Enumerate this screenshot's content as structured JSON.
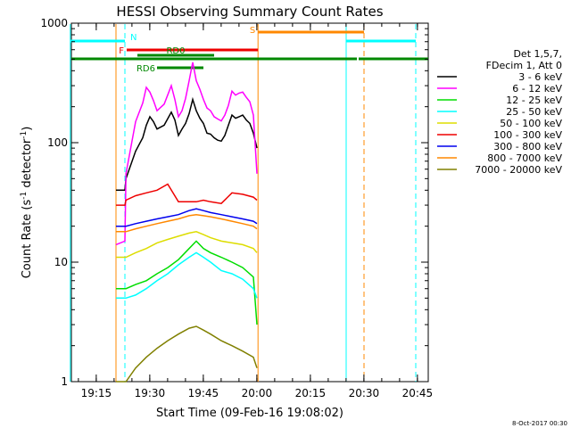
{
  "chart_data": {
    "type": "line",
    "title": "HESSI Observing Summary Count Rates",
    "xlabel": "Start Time (09-Feb-16 19:08:02)",
    "ylabel": "Count Rate (s⁻¹ detector⁻¹)",
    "ylabel_parts": [
      "Count Rate (s",
      "-1",
      " detector",
      "-1",
      ")"
    ],
    "yscale": "log",
    "xlim_minutes": [
      0,
      100
    ],
    "ylim": [
      1,
      1000
    ],
    "y_ticks": [
      {
        "value": 1,
        "label": "1"
      },
      {
        "value": 10,
        "label": "10"
      },
      {
        "value": 100,
        "label": "100"
      },
      {
        "value": 1000,
        "label": "1000"
      }
    ],
    "x_ticks": [
      {
        "minute": 6.97,
        "label": "19:15"
      },
      {
        "minute": 21.97,
        "label": "19:30"
      },
      {
        "minute": 36.97,
        "label": "19:45"
      },
      {
        "minute": 51.97,
        "label": "20:00"
      },
      {
        "minute": 66.97,
        "label": "20:15"
      },
      {
        "minute": 81.97,
        "label": "20:30"
      },
      {
        "minute": 96.97,
        "label": "20:45"
      }
    ],
    "legend": {
      "placement": "right",
      "header": [
        "Det 1,5,7,",
        "FDecim 1, Att 0"
      ],
      "entries": [
        {
          "label": "3 - 6 keV",
          "color": "#000000"
        },
        {
          "label": "6 - 12 keV",
          "color": "#ff00ff"
        },
        {
          "label": "12 - 25 keV",
          "color": "#00dd00"
        },
        {
          "label": "25 - 50 keV",
          "color": "#00ffff"
        },
        {
          "label": "50 - 100 keV",
          "color": "#dddd00"
        },
        {
          "label": "100 - 300 keV",
          "color": "#ee0000"
        },
        {
          "label": "300 - 800 keV",
          "color": "#0000ee"
        },
        {
          "label": "800 - 7000 keV",
          "color": "#ff8800"
        },
        {
          "label": "7000 - 20000 keV",
          "color": "#808000"
        }
      ]
    },
    "series": [
      {
        "name": "3 - 6 keV",
        "color": "#000000",
        "x": [
          12.5,
          15,
          15.3,
          18,
          20,
          21,
          22,
          23,
          24,
          26,
          28,
          29,
          30,
          31,
          32,
          33,
          34,
          35,
          36,
          37,
          38,
          39,
          40,
          41,
          42,
          43,
          44,
          45,
          46,
          47,
          48,
          49,
          50,
          51,
          52
        ],
        "y": [
          40,
          40,
          50,
          85,
          110,
          140,
          165,
          150,
          130,
          140,
          180,
          155,
          115,
          130,
          145,
          175,
          230,
          185,
          160,
          145,
          120,
          118,
          110,
          105,
          103,
          115,
          140,
          170,
          160,
          165,
          170,
          155,
          145,
          120,
          90
        ]
      },
      {
        "name": "6 - 12 keV",
        "color": "#ff00ff",
        "x": [
          12.5,
          15,
          15.3,
          18,
          20,
          21,
          22,
          23,
          24,
          26,
          28,
          29,
          30,
          31,
          32,
          33,
          34,
          35,
          36,
          37,
          38,
          39,
          40,
          41,
          42,
          43,
          44,
          45,
          46,
          47,
          48,
          49,
          50,
          51,
          52
        ],
        "y": [
          14,
          15,
          55,
          150,
          215,
          290,
          265,
          225,
          185,
          210,
          300,
          230,
          165,
          185,
          235,
          330,
          470,
          330,
          280,
          230,
          195,
          185,
          165,
          158,
          152,
          170,
          205,
          270,
          250,
          260,
          265,
          240,
          220,
          170,
          55
        ]
      },
      {
        "name": "12 - 25 keV",
        "color": "#00dd00",
        "x": [
          12.5,
          15,
          15.3,
          18,
          21,
          24,
          27,
          30,
          33,
          35,
          37,
          39,
          42,
          45,
          48,
          51,
          52
        ],
        "y": [
          6,
          6,
          6,
          6.5,
          7,
          8,
          9,
          10.5,
          13,
          15,
          13,
          12,
          11,
          10,
          9,
          7.5,
          3
        ]
      },
      {
        "name": "25 - 50 keV",
        "color": "#00ffff",
        "x": [
          12.5,
          15,
          15.3,
          18,
          21,
          24,
          27,
          30,
          33,
          35,
          37,
          39,
          42,
          45,
          48,
          51,
          52
        ],
        "y": [
          5,
          5,
          5,
          5.3,
          6,
          7,
          8,
          9.5,
          11,
          12,
          11,
          10,
          8.5,
          8,
          7.2,
          6,
          5
        ]
      },
      {
        "name": "50 - 100 keV",
        "color": "#dddd00",
        "x": [
          12.5,
          15,
          15.3,
          18,
          21,
          24,
          27,
          30,
          33,
          35,
          37,
          39,
          42,
          45,
          48,
          51,
          52
        ],
        "y": [
          11,
          11,
          11,
          12,
          13,
          14.5,
          15.5,
          16.5,
          17.5,
          18,
          17,
          16,
          15,
          14.5,
          14,
          13,
          12
        ]
      },
      {
        "name": "100 - 300 keV",
        "color": "#ee0000",
        "x": [
          12.5,
          15,
          15.3,
          18,
          21,
          24,
          27,
          30,
          33,
          35,
          37,
          39,
          42,
          45,
          48,
          51,
          52
        ],
        "y": [
          30,
          30,
          33,
          36,
          38,
          40,
          45,
          32,
          32,
          32,
          33,
          32,
          31,
          38,
          37,
          35,
          33
        ]
      },
      {
        "name": "300 - 800 keV",
        "color": "#0000ee",
        "x": [
          12.5,
          15,
          15.3,
          18,
          21,
          24,
          27,
          30,
          33,
          35,
          37,
          39,
          42,
          45,
          48,
          51,
          52
        ],
        "y": [
          20,
          20,
          20,
          21,
          22,
          23,
          24,
          25,
          27,
          28,
          27,
          26,
          25,
          24,
          23,
          22,
          21
        ]
      },
      {
        "name": "800 - 7000 keV",
        "color": "#ff8800",
        "x": [
          12.5,
          15,
          15.3,
          18,
          21,
          24,
          27,
          30,
          33,
          35,
          37,
          39,
          42,
          45,
          48,
          51,
          52
        ],
        "y": [
          18,
          18,
          18,
          19,
          20,
          21,
          22,
          23,
          24.5,
          25,
          24.5,
          24,
          23,
          22,
          21,
          20,
          19
        ]
      },
      {
        "name": "7000 - 20000 keV",
        "color": "#808000",
        "x": [
          12.5,
          15,
          15.3,
          18,
          21,
          24,
          27,
          30,
          33,
          35,
          37,
          39,
          42,
          45,
          48,
          51,
          52
        ],
        "y": [
          1,
          1,
          1,
          1.3,
          1.6,
          1.9,
          2.2,
          2.5,
          2.8,
          2.9,
          2.7,
          2.5,
          2.2,
          2.0,
          1.8,
          1.6,
          1.3
        ]
      }
    ],
    "vertical_lines": [
      {
        "minute": -0.3,
        "color": "#00ffff",
        "style": "solid"
      },
      {
        "minute": 15,
        "color": "#00ffff",
        "style": "dashed"
      },
      {
        "minute": 12.5,
        "color": "#ff8800",
        "style": "solid"
      },
      {
        "minute": 52.3,
        "color": "#ff8800",
        "style": "solid"
      },
      {
        "minute": 77,
        "color": "#00ffff",
        "style": "solid"
      },
      {
        "minute": 82,
        "color": "#ff8800",
        "style": "dashed"
      },
      {
        "minute": 96.5,
        "color": "#00ffff",
        "style": "dashed"
      }
    ],
    "flag_bars": [
      {
        "label": "N",
        "color": "#00ffff",
        "segments": [
          [
            -0.3,
            15
          ],
          [
            77,
            96.5
          ]
        ],
        "level": 1
      },
      {
        "label": "S",
        "color": "#ff8800",
        "segments": [
          [
            52.3,
            82
          ]
        ],
        "level": 0
      },
      {
        "label": "F",
        "color": "#ee0000",
        "segments": [
          [
            15.5,
            52.3
          ]
        ],
        "level": 2
      },
      {
        "label": "",
        "color": "#008800",
        "segments": [
          [
            0,
            80
          ],
          [
            80.5,
            100
          ]
        ],
        "level": 3
      },
      {
        "label": "RD0",
        "color": "#008800",
        "segments": [
          [
            18.5,
            40
          ]
        ],
        "level": 2.6
      },
      {
        "label": "RD6",
        "color": "#008800",
        "segments": [
          [
            24,
            37
          ]
        ],
        "level": 4
      }
    ]
  },
  "footer": {
    "timestamp": "8-Oct-2017 00:30"
  }
}
